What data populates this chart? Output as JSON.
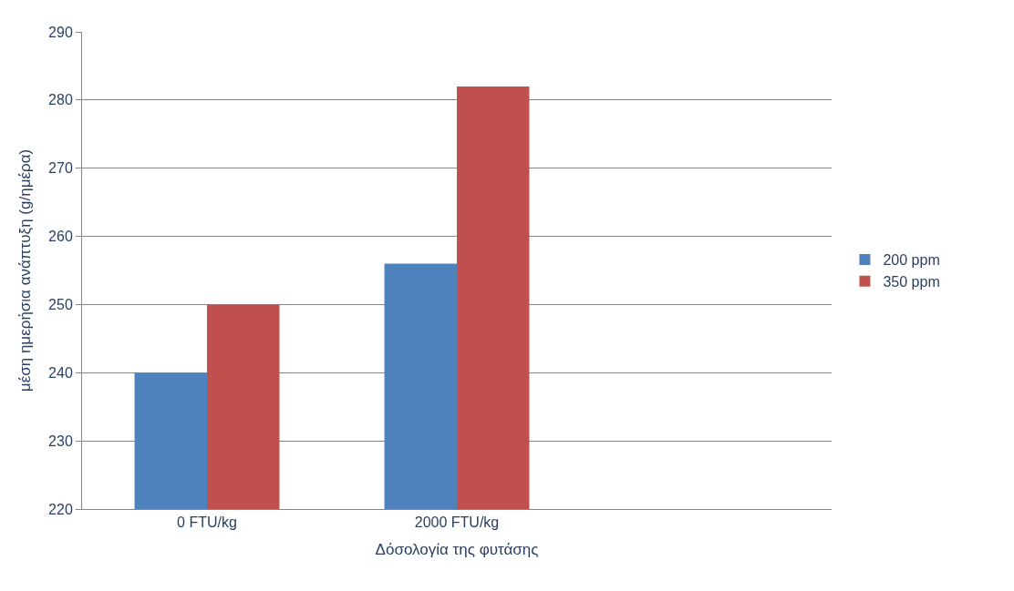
{
  "chart_data": {
    "type": "bar",
    "xlabel": "Δόσολογία της φυτάσης",
    "ylabel": "μέση ημερήσια ανάπτυξη (g/ημέρα)",
    "categories": [
      "0 FTU/kg",
      "2000 FTU/kg",
      null
    ],
    "series": [
      {
        "name": "200 ppm",
        "color": "#4f81bd",
        "values": [
          240,
          256,
          null
        ]
      },
      {
        "name": "350 ppm",
        "color": "#c0504d",
        "values": [
          250,
          282,
          null
        ]
      }
    ],
    "ylim": [
      220,
      290
    ],
    "yticks": [
      220,
      230,
      240,
      250,
      260,
      270,
      280,
      290
    ],
    "grid": "y",
    "legend": "right"
  }
}
